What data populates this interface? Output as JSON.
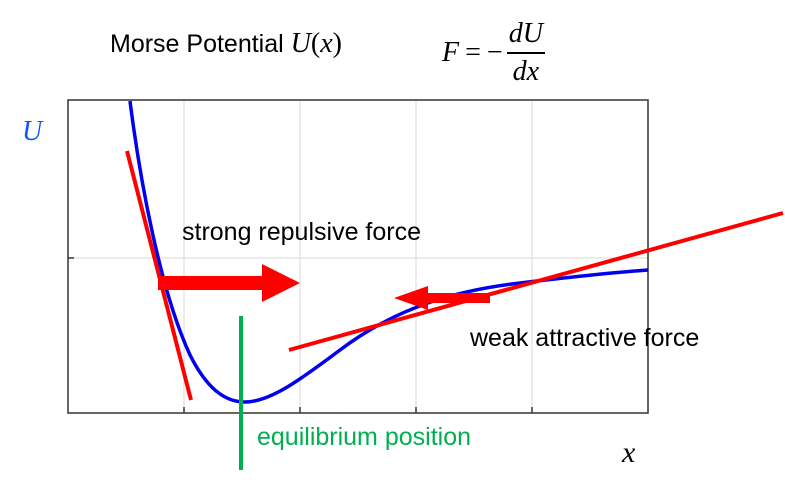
{
  "title": {
    "text": "Morse Potential",
    "func": "U",
    "var": "x"
  },
  "formula": {
    "lhs": "F",
    "eq": "=",
    "minus": "−",
    "numerator": "dU",
    "denominator": "dx"
  },
  "axes": {
    "y_label": "U",
    "x_label": "x"
  },
  "annotations": {
    "repulsive": "strong repulsive force",
    "attractive": "weak attractive force",
    "equilibrium": "equilibrium position"
  },
  "colors": {
    "curve": "#0000ee",
    "tangent": "#ff0000",
    "equilibrium": "#00b050",
    "y_label": "#1155ff",
    "grid": "#d9d9d9",
    "frame": "#333333"
  }
}
